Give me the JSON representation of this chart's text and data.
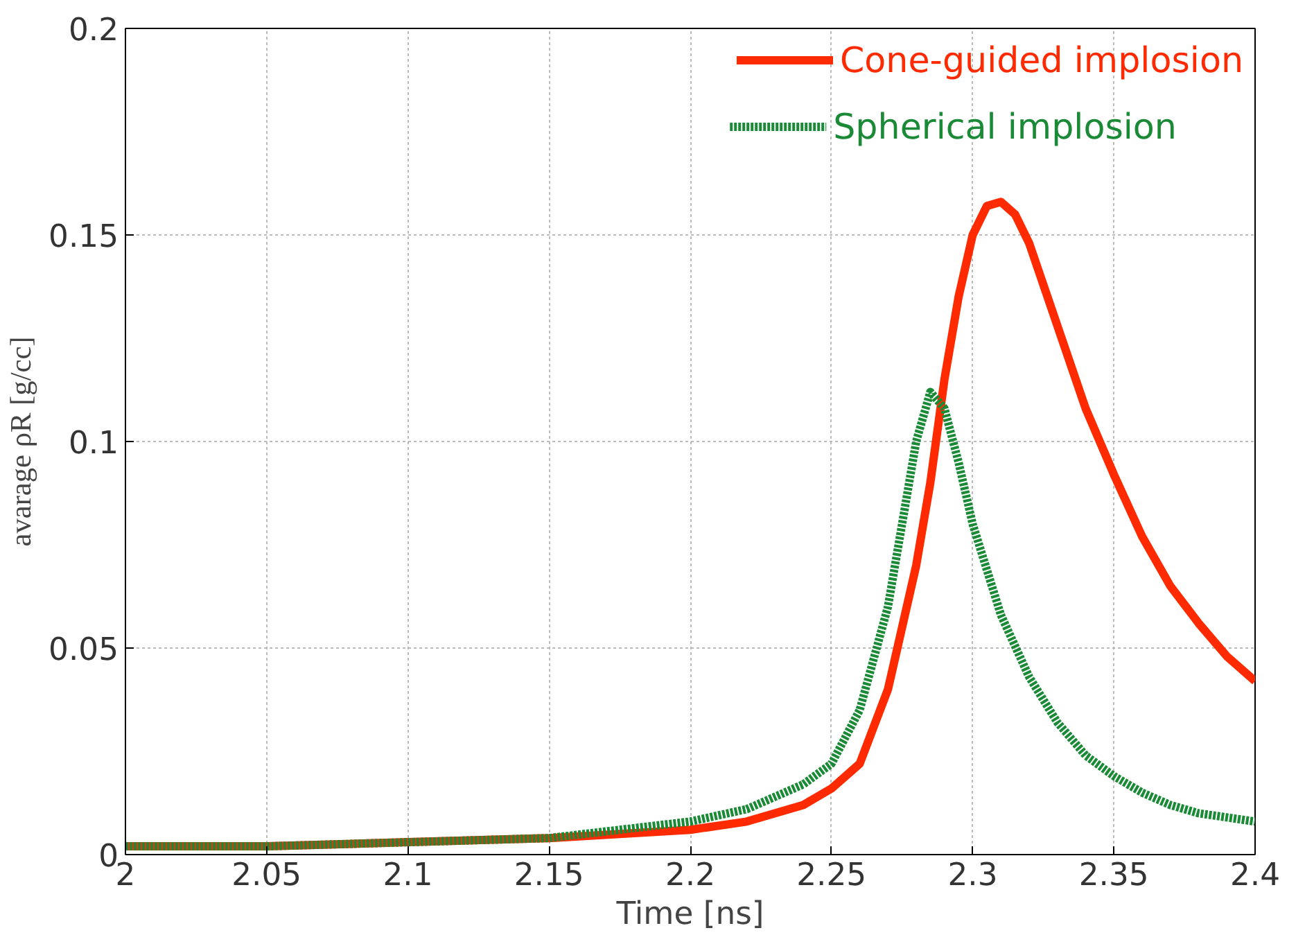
{
  "chart_data": {
    "type": "line",
    "xlabel": "Time [ns]",
    "ylabel": "avarage ρR [g/cc]",
    "xlim": [
      2,
      2.4
    ],
    "ylim": [
      0,
      0.2
    ],
    "xticks": [
      2,
      2.05,
      2.1,
      2.15,
      2.2,
      2.25,
      2.3,
      2.35,
      2.4
    ],
    "yticks": [
      0,
      0.05,
      0.1,
      0.15,
      0.2
    ],
    "grid": true,
    "legend": "top right",
    "series": [
      {
        "name": "Cone-guided implosion",
        "color": "#ff2a00",
        "line_style": "solid",
        "x": [
          2.0,
          2.05,
          2.1,
          2.15,
          2.2,
          2.22,
          2.24,
          2.25,
          2.26,
          2.27,
          2.28,
          2.285,
          2.29,
          2.295,
          2.3,
          2.305,
          2.31,
          2.315,
          2.32,
          2.33,
          2.34,
          2.35,
          2.36,
          2.37,
          2.38,
          2.39,
          2.4
        ],
        "values": [
          0.002,
          0.002,
          0.003,
          0.004,
          0.006,
          0.008,
          0.012,
          0.016,
          0.022,
          0.04,
          0.07,
          0.09,
          0.115,
          0.135,
          0.15,
          0.157,
          0.158,
          0.155,
          0.148,
          0.128,
          0.108,
          0.092,
          0.077,
          0.065,
          0.056,
          0.048,
          0.042
        ]
      },
      {
        "name": "Spherical implosion",
        "color": "#1a8a36",
        "line_style": "dotted",
        "x": [
          2.0,
          2.05,
          2.1,
          2.15,
          2.2,
          2.22,
          2.24,
          2.25,
          2.26,
          2.27,
          2.275,
          2.28,
          2.285,
          2.29,
          2.295,
          2.3,
          2.31,
          2.32,
          2.33,
          2.34,
          2.35,
          2.36,
          2.37,
          2.38,
          2.4
        ],
        "values": [
          0.002,
          0.002,
          0.003,
          0.004,
          0.008,
          0.011,
          0.017,
          0.022,
          0.035,
          0.06,
          0.08,
          0.1,
          0.112,
          0.108,
          0.095,
          0.08,
          0.058,
          0.043,
          0.032,
          0.024,
          0.019,
          0.015,
          0.012,
          0.01,
          0.008
        ]
      }
    ]
  }
}
